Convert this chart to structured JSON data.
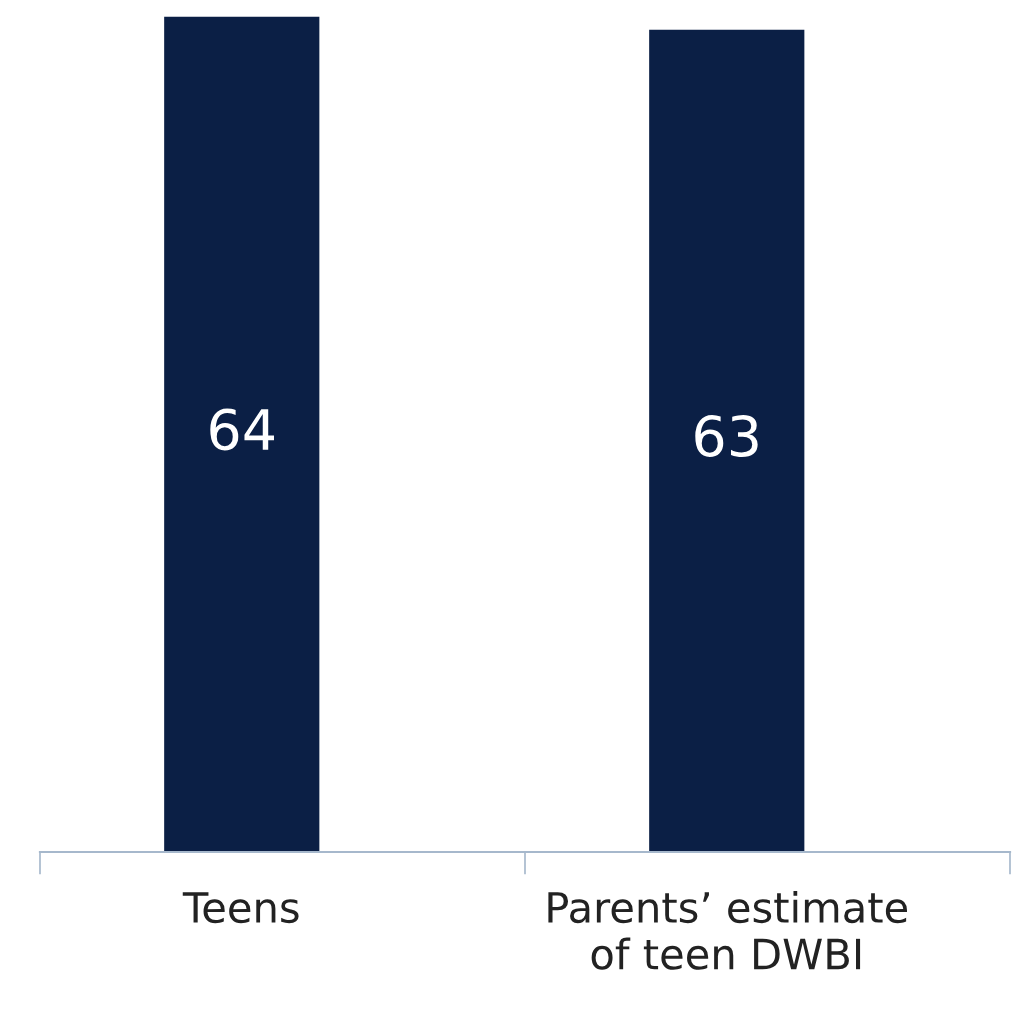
{
  "chart_data": {
    "type": "bar",
    "categories": [
      "Teens",
      "Parents’ estimate\nof teen DWBI"
    ],
    "values": [
      64,
      63
    ],
    "color": "#0b1f45",
    "data_labels": true,
    "tick_labels": "x",
    "grid": false,
    "legend": false
  }
}
